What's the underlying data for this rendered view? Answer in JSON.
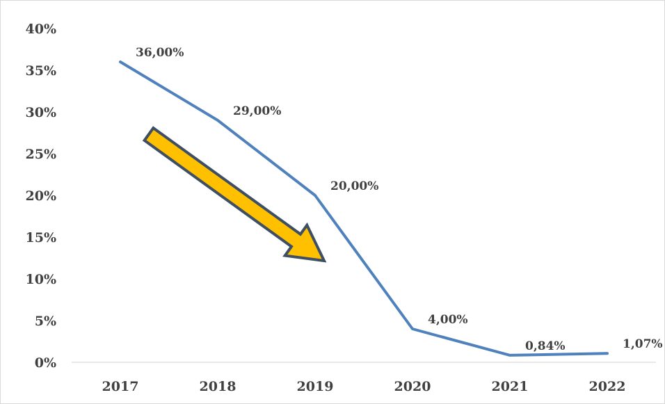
{
  "chart_data": {
    "type": "line",
    "title": "",
    "xlabel": "",
    "ylabel": "",
    "categories": [
      "2017",
      "2018",
      "2019",
      "2020",
      "2021",
      "2022"
    ],
    "series": [
      {
        "values": [
          36.0,
          29.0,
          20.0,
          4.0,
          0.84,
          1.07
        ],
        "data_labels": [
          "36,00%",
          "29,00%",
          "20,00%",
          "4,00%",
          "0,84%",
          "1,07%"
        ],
        "color": "#4f81bd"
      }
    ],
    "ylim": [
      0,
      40
    ],
    "y_ticks": [
      0,
      5,
      10,
      15,
      20,
      25,
      30,
      35,
      40
    ],
    "y_tick_labels": [
      "0%",
      "5%",
      "10%",
      "15%",
      "20%",
      "25%",
      "30%",
      "35%",
      "40%"
    ],
    "grid": false,
    "legend": "none",
    "annotation": {
      "shape": "arrow-down-right",
      "fill_color": "#ffc000",
      "stroke_color": "#3f4f63"
    }
  }
}
